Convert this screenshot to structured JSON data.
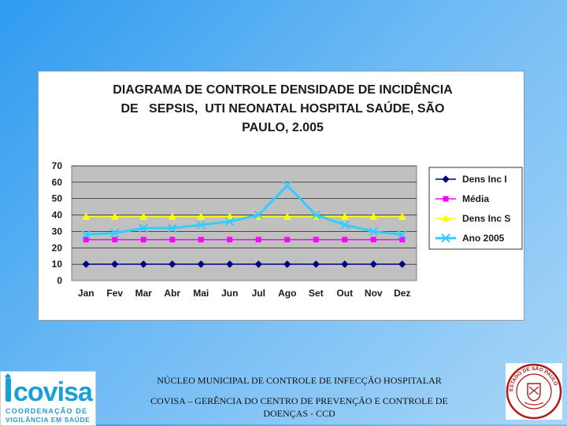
{
  "chart_data": {
    "type": "line",
    "title_lines": [
      "DIAGRAMA DE CONTROLE DENSIDADE DE INCIDÊNCIA",
      "DE   SEPSIS,  UTI NEONATAL HOSPITAL SAÚDE, SÃO",
      "PAULO, 2.005"
    ],
    "categories": [
      "Jan",
      "Fev",
      "Mar",
      "Abr",
      "Mai",
      "Jun",
      "Jul",
      "Ago",
      "Set",
      "Out",
      "Nov",
      "Dez"
    ],
    "ylim": [
      0,
      70
    ],
    "yticks": [
      0,
      10,
      20,
      30,
      40,
      50,
      60,
      70
    ],
    "grid": true,
    "legend_position": "right",
    "plot_background": "#c0c0c0",
    "series": [
      {
        "name": "Dens Inc I",
        "color": "#000080",
        "marker": "diamond",
        "values": [
          10,
          10,
          10,
          10,
          10,
          10,
          10,
          10,
          10,
          10,
          10,
          10
        ]
      },
      {
        "name": "Média",
        "color": "#ff00ff",
        "marker": "square",
        "values": [
          25,
          25,
          25,
          25,
          25,
          25,
          25,
          25,
          25,
          25,
          25,
          25
        ]
      },
      {
        "name": "Dens Inc S",
        "color": "#ffff00",
        "marker": "triangle",
        "values": [
          39,
          39,
          39,
          39,
          39,
          39,
          39,
          39,
          39,
          39,
          39,
          39
        ]
      },
      {
        "name": "Ano 2005",
        "color": "#33ccff",
        "marker": "x",
        "values": [
          28,
          29,
          32,
          32,
          34,
          36,
          40,
          58,
          40,
          34,
          30,
          28
        ]
      }
    ]
  },
  "footer": {
    "line1": "NÚCLEO MUNICIPAL DE CONTROLE DE INFECÇÃO HOSPITALAR",
    "line2": "COVISA –  GERÊNCIA DO CENTRO DE PREVENÇÃO E CONTROLE DE",
    "line3": "DOENÇAS - CCD"
  },
  "logo": {
    "name": "covisa",
    "sub1": "COORDENAÇÃO DE",
    "sub2": "VIGILÂNCIA EM SAÚDE",
    "color": "#1a9fd6"
  },
  "seal": {
    "text": "ESTADO DE SÃO PAULO",
    "color": "#b01818"
  }
}
